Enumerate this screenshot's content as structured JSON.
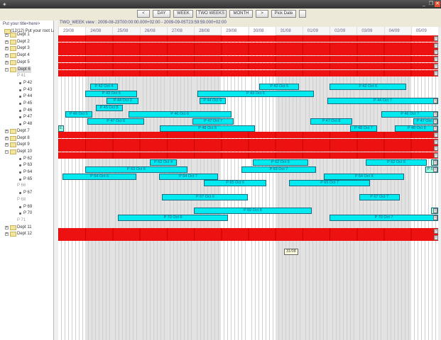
{
  "window": {
    "minimize": "_",
    "restore": "❐",
    "close": "✕",
    "close_color": "#e05030"
  },
  "toolbar": {
    "prev": "<",
    "day": "DAY",
    "week": "WEEK",
    "two_weeks": "TWO WEEKS",
    "month": "MONTH",
    "next": ">",
    "pick_date": "Pick Date"
  },
  "left_panel": {
    "title": "Put your title<here>",
    "root": "(12/12) Put your root La"
  },
  "status": "TWO_WEEK view : 2009-08-23T00:00:00.000+02:00 - 2009-09-05T23:59:59.000+02:00",
  "dates": [
    "23/08",
    "24/08",
    "25/08",
    "26/08",
    "27/08",
    "28/08",
    "29/08",
    "30/08",
    "31/08",
    "01/09",
    "02/09",
    "03/09",
    "04/09",
    "05/09"
  ],
  "weekend_dates": [
    "23/08",
    "29/08",
    "30/08",
    "05/09"
  ],
  "colors": {
    "dept_row": "#ee1111",
    "bar": "#00eaf0"
  },
  "tooltip": "31/08",
  "rows": [
    {
      "label": "Dept 1",
      "type": "dept",
      "expanded": false
    },
    {
      "label": "Dept 2",
      "type": "dept",
      "expanded": false
    },
    {
      "label": "Dept 3",
      "type": "dept",
      "expanded": false
    },
    {
      "label": "Dept 4",
      "type": "dept",
      "expanded": false
    },
    {
      "label": "Dept 5",
      "type": "dept",
      "expanded": false
    },
    {
      "label": "Dept 6",
      "type": "dept",
      "expanded": true,
      "selected": true
    },
    {
      "label": "P 41",
      "type": "empty"
    },
    {
      "label": "P 42",
      "type": "person",
      "bars": [
        {
          "label": "P 42 Oct 4",
          "start": "24/08 04",
          "end": "25/08 05"
        },
        {
          "label": "P 42 Oct 5",
          "start": "30/08 10",
          "end": "31/08 21"
        },
        {
          "label": "P 42 Oct 6",
          "start": "02/09 00",
          "end": "04/09 20"
        }
      ]
    },
    {
      "label": "P 43",
      "type": "person",
      "bars": [
        {
          "label": "P 43 Oct 5",
          "start": "24/08 00",
          "end": "25/08 22"
        },
        {
          "label": "P 43 Oct 6",
          "start": "28/08 03",
          "end": "01/09 10"
        }
      ]
    },
    {
      "label": "P 44",
      "type": "person",
      "bars": [
        {
          "label": "P 44 Oct 3",
          "start": "24/08 19",
          "end": "25/08 23"
        },
        {
          "label": "P 44 Oct 6",
          "start": "28/08 05",
          "end": "29/08 04"
        },
        {
          "label": "P 44 Oct 7",
          "start": "01/09 22",
          "end": "06/09 00",
          "continues": true
        }
      ]
    },
    {
      "label": "P 45",
      "type": "person",
      "bars": [
        {
          "label": "P 45 Oct 5",
          "start": "24/08 09",
          "end": "25/08 09"
        }
      ]
    },
    {
      "label": "P 46",
      "type": "person",
      "bars": [
        {
          "label": "P 46 Oct 5",
          "start": "23/08 06",
          "end": "24/08 06"
        },
        {
          "label": "P 46 Oct 6",
          "start": "25/08 14",
          "end": "29/08 09"
        },
        {
          "label": "P 46 Oct 7",
          "start": "03/09 22",
          "end": "06/09 00",
          "continues": true
        }
      ]
    },
    {
      "label": "P 47",
      "type": "person",
      "bars": [
        {
          "label": "P 47 Oct 6",
          "start": "24/08 02",
          "end": "26/08 04"
        },
        {
          "label": "P 47 Oct 7",
          "start": "27/08 23",
          "end": "29/08 11"
        },
        {
          "label": "P 47 Oct 8",
          "start": "01/09 07",
          "end": "02/09 20"
        },
        {
          "label": "P 47 Oct 8",
          "start": "05/09 02",
          "end": "06/09 00",
          "continues": true
        }
      ]
    },
    {
      "label": "P 48",
      "type": "person",
      "bars": [
        {
          "label": "E",
          "start": "23/08 00",
          "end": "23/08 05",
          "small": true
        },
        {
          "label": "P 48 Oct 6",
          "start": "26/08 18",
          "end": "30/08 06"
        },
        {
          "label": "P 48 Oct 7",
          "start": "02/09 18",
          "end": "03/09 18"
        },
        {
          "label": "P 48 Oct 8",
          "start": "04/09 10",
          "end": "06/09 00",
          "continues": true
        }
      ]
    },
    {
      "label": "Dept 7",
      "type": "dept",
      "expanded": false
    },
    {
      "label": "Dept 8",
      "type": "dept",
      "expanded": false
    },
    {
      "label": "Dept 9",
      "type": "dept",
      "expanded": false
    },
    {
      "label": "Dept 10",
      "type": "dept",
      "expanded": true
    },
    {
      "label": "P 62",
      "type": "person",
      "bars": [
        {
          "label": "P 62 Oct 4",
          "start": "26/08 09",
          "end": "27/08 09"
        },
        {
          "label": "P 62 Oct 5",
          "start": "30/08 04",
          "end": "01/09 05"
        },
        {
          "label": "P 62 Oct 6",
          "start": "03/09 08",
          "end": "05/09 14"
        },
        {
          "label": "",
          "start": "05/09 18",
          "end": "06/09 00",
          "continues": true,
          "small": true
        }
      ]
    },
    {
      "label": "P 63",
      "type": "person",
      "bars": [
        {
          "label": "P 63 Oct 6",
          "start": "24/08 00",
          "end": "27/08 18"
        },
        {
          "label": "P 63 Oct 7",
          "start": "29/08 18",
          "end": "01/09 12"
        },
        {
          "label": "P 63",
          "start": "05/09 13",
          "end": "06/09 00",
          "continues": true,
          "small": true
        }
      ]
    },
    {
      "label": "P 64",
      "type": "person",
      "bars": [
        {
          "label": "P 64 Oct 6",
          "start": "23/08 04",
          "end": "25/08 21"
        },
        {
          "label": "P 64 Oct 7",
          "start": "26/08 17",
          "end": "28/08 21"
        },
        {
          "label": "P 64 Oct 8",
          "start": "01/09 19",
          "end": "04/09 18"
        }
      ]
    },
    {
      "label": "P 65",
      "type": "person",
      "bars": [
        {
          "label": "P 65 Oct 6",
          "start": "28/08 09",
          "end": "30/08 16"
        },
        {
          "label": "P 65 Oct 7",
          "start": "31/08 12",
          "end": "03/09 12"
        }
      ]
    },
    {
      "label": "P 66",
      "type": "empty"
    },
    {
      "label": "P 67",
      "type": "person",
      "bars": [
        {
          "label": "P 67 Oct 6",
          "start": "26/08 20",
          "end": "30/08 00"
        },
        {
          "label": "P 67 Oct 7",
          "start": "03/09 02",
          "end": "04/09 14"
        }
      ]
    },
    {
      "label": "P 68",
      "type": "empty"
    },
    {
      "label": "P 69",
      "type": "person",
      "bars": [
        {
          "label": "P 69 Oct 8",
          "start": "28/08 00",
          "end": "01/09 08"
        },
        {
          "label": "P",
          "start": "05/09 18",
          "end": "06/09 00",
          "continues": true,
          "small": true
        }
      ]
    },
    {
      "label": "P 70",
      "type": "person",
      "bars": [
        {
          "label": "P 70 Oct 6",
          "start": "25/08 05",
          "end": "29/08 06"
        },
        {
          "label": "P 70 Oct 7",
          "start": "02/09 00",
          "end": "06/09 00",
          "continues": true
        }
      ]
    },
    {
      "label": "P 71",
      "type": "empty"
    },
    {
      "label": "Dept 11",
      "type": "dept",
      "expanded": false
    },
    {
      "label": "Dept 12",
      "type": "dept",
      "expanded": false
    }
  ]
}
